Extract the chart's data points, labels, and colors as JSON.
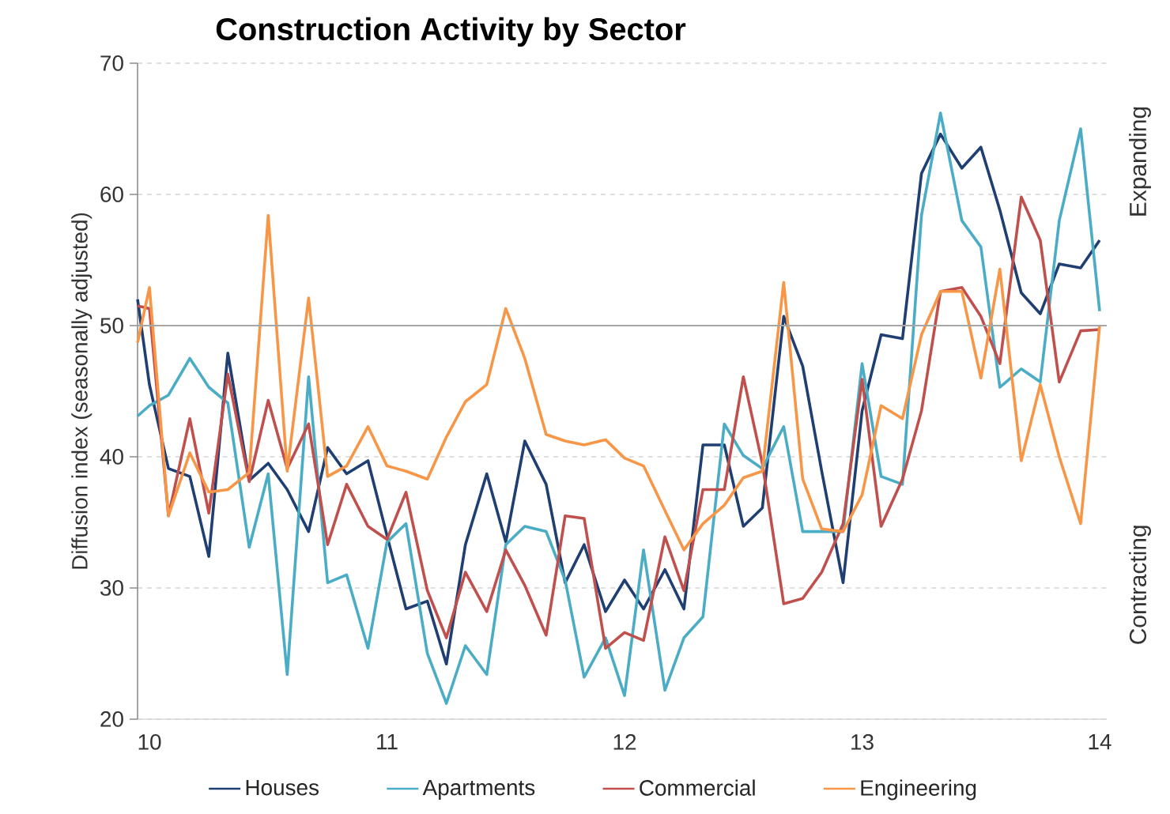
{
  "chart_data": {
    "type": "line",
    "title": "Construction Activity by Sector",
    "ylabel": "Diffusion index (seasonally adjusted)",
    "x": [
      9.95,
      10,
      10.08,
      10.17,
      10.25,
      10.33,
      10.42,
      10.5,
      10.58,
      10.67,
      10.75,
      10.83,
      10.92,
      11,
      11.08,
      11.17,
      11.25,
      11.33,
      11.42,
      11.5,
      11.58,
      11.67,
      11.75,
      11.83,
      11.92,
      12,
      12.08,
      12.17,
      12.25,
      12.33,
      12.42,
      12.5,
      12.58,
      12.67,
      12.75,
      12.83,
      12.92,
      13,
      13.08,
      13.17,
      13.25,
      13.33,
      13.42,
      13.5,
      13.58,
      13.67,
      13.75,
      13.83,
      13.92,
      14
    ],
    "series": [
      {
        "name": "Houses",
        "color": "#1f3f73",
        "values": [
          52,
          45.5,
          39.1,
          38.5,
          32.4,
          47.9,
          38.2,
          39.5,
          37.5,
          34.3,
          40.7,
          38.7,
          39.7,
          34,
          28.4,
          29.0,
          24.2,
          33.3,
          38.7,
          33.5,
          41.2,
          37.9,
          30.4,
          33.3,
          28.2,
          30.6,
          28.4,
          31.4,
          28.4,
          40.9,
          40.9,
          34.7,
          36.1,
          50.7,
          46.9,
          38.9,
          30.4,
          43.5,
          49.3,
          49.0,
          61.6,
          64.6,
          62.0,
          63.6,
          58.8,
          52.5,
          50.9,
          54.7,
          54.4,
          56.5
        ]
      },
      {
        "name": "Apartments",
        "color": "#4bacc6",
        "values": [
          43.1,
          43.9,
          44.7,
          47.5,
          45.3,
          44.1,
          33.1,
          38.7,
          23.4,
          46.1,
          30.4,
          31.0,
          25.4,
          33.5,
          34.9,
          25.0,
          21.2,
          25.6,
          23.4,
          33.3,
          34.7,
          34.3,
          30.6,
          23.2,
          26.2,
          21.8,
          32.9,
          22.2,
          26.2,
          27.8,
          42.5,
          40.1,
          39.1,
          42.3,
          34.3,
          34.3,
          34.3,
          47.1,
          38.5,
          37.9,
          58.4,
          66.2,
          58.0,
          56.0,
          45.3,
          46.7,
          45.7,
          58.0,
          65.0,
          51.1
        ]
      },
      {
        "name": "Commercial",
        "color": "#c0504d",
        "values": [
          51.5,
          51.3,
          35.5,
          42.9,
          35.7,
          46.3,
          38.1,
          44.3,
          39.1,
          42.5,
          33.3,
          37.9,
          34.7,
          33.7,
          37.3,
          29.8,
          26.2,
          31.2,
          28.2,
          32.9,
          30.2,
          26.4,
          35.5,
          35.3,
          25.4,
          26.6,
          26.0,
          33.9,
          29.8,
          37.5,
          37.5,
          46.1,
          39.5,
          28.8,
          29.2,
          31.2,
          34.9,
          45.9,
          34.7,
          38.3,
          43.5,
          52.6,
          52.9,
          50.7,
          47.1,
          59.8,
          56.5,
          45.7,
          49.6,
          49.7
        ]
      },
      {
        "name": "Engineering",
        "color": "#f79646",
        "values": [
          48.7,
          52.9,
          35.5,
          40.3,
          37.3,
          37.5,
          38.8,
          58.4,
          38.9,
          52.1,
          38.5,
          39.3,
          42.3,
          39.3,
          38.9,
          38.3,
          41.5,
          44.2,
          45.5,
          51.3,
          47.5,
          41.7,
          41.2,
          40.9,
          41.3,
          39.9,
          39.3,
          35.9,
          32.9,
          34.9,
          36.3,
          38.4,
          38.9,
          53.3,
          38.3,
          34.5,
          34.3,
          37.1,
          43.9,
          42.9,
          49.3,
          52.6,
          52.6,
          46.0,
          54.3,
          39.7,
          45.5,
          40.0,
          34.9,
          50.0
        ]
      }
    ],
    "xlim": [
      9.95,
      14.03
    ],
    "xticks": [
      10,
      11,
      12,
      13,
      14
    ],
    "ylim": [
      20,
      70
    ],
    "yticks": [
      20,
      30,
      40,
      50,
      60,
      70
    ],
    "grid": "y",
    "legend": "bottom",
    "ref_lines": [
      {
        "axis": "y",
        "value": 50,
        "color": "#a6a6a6"
      }
    ],
    "annotations": [
      "Expanding",
      "Contracting"
    ]
  }
}
